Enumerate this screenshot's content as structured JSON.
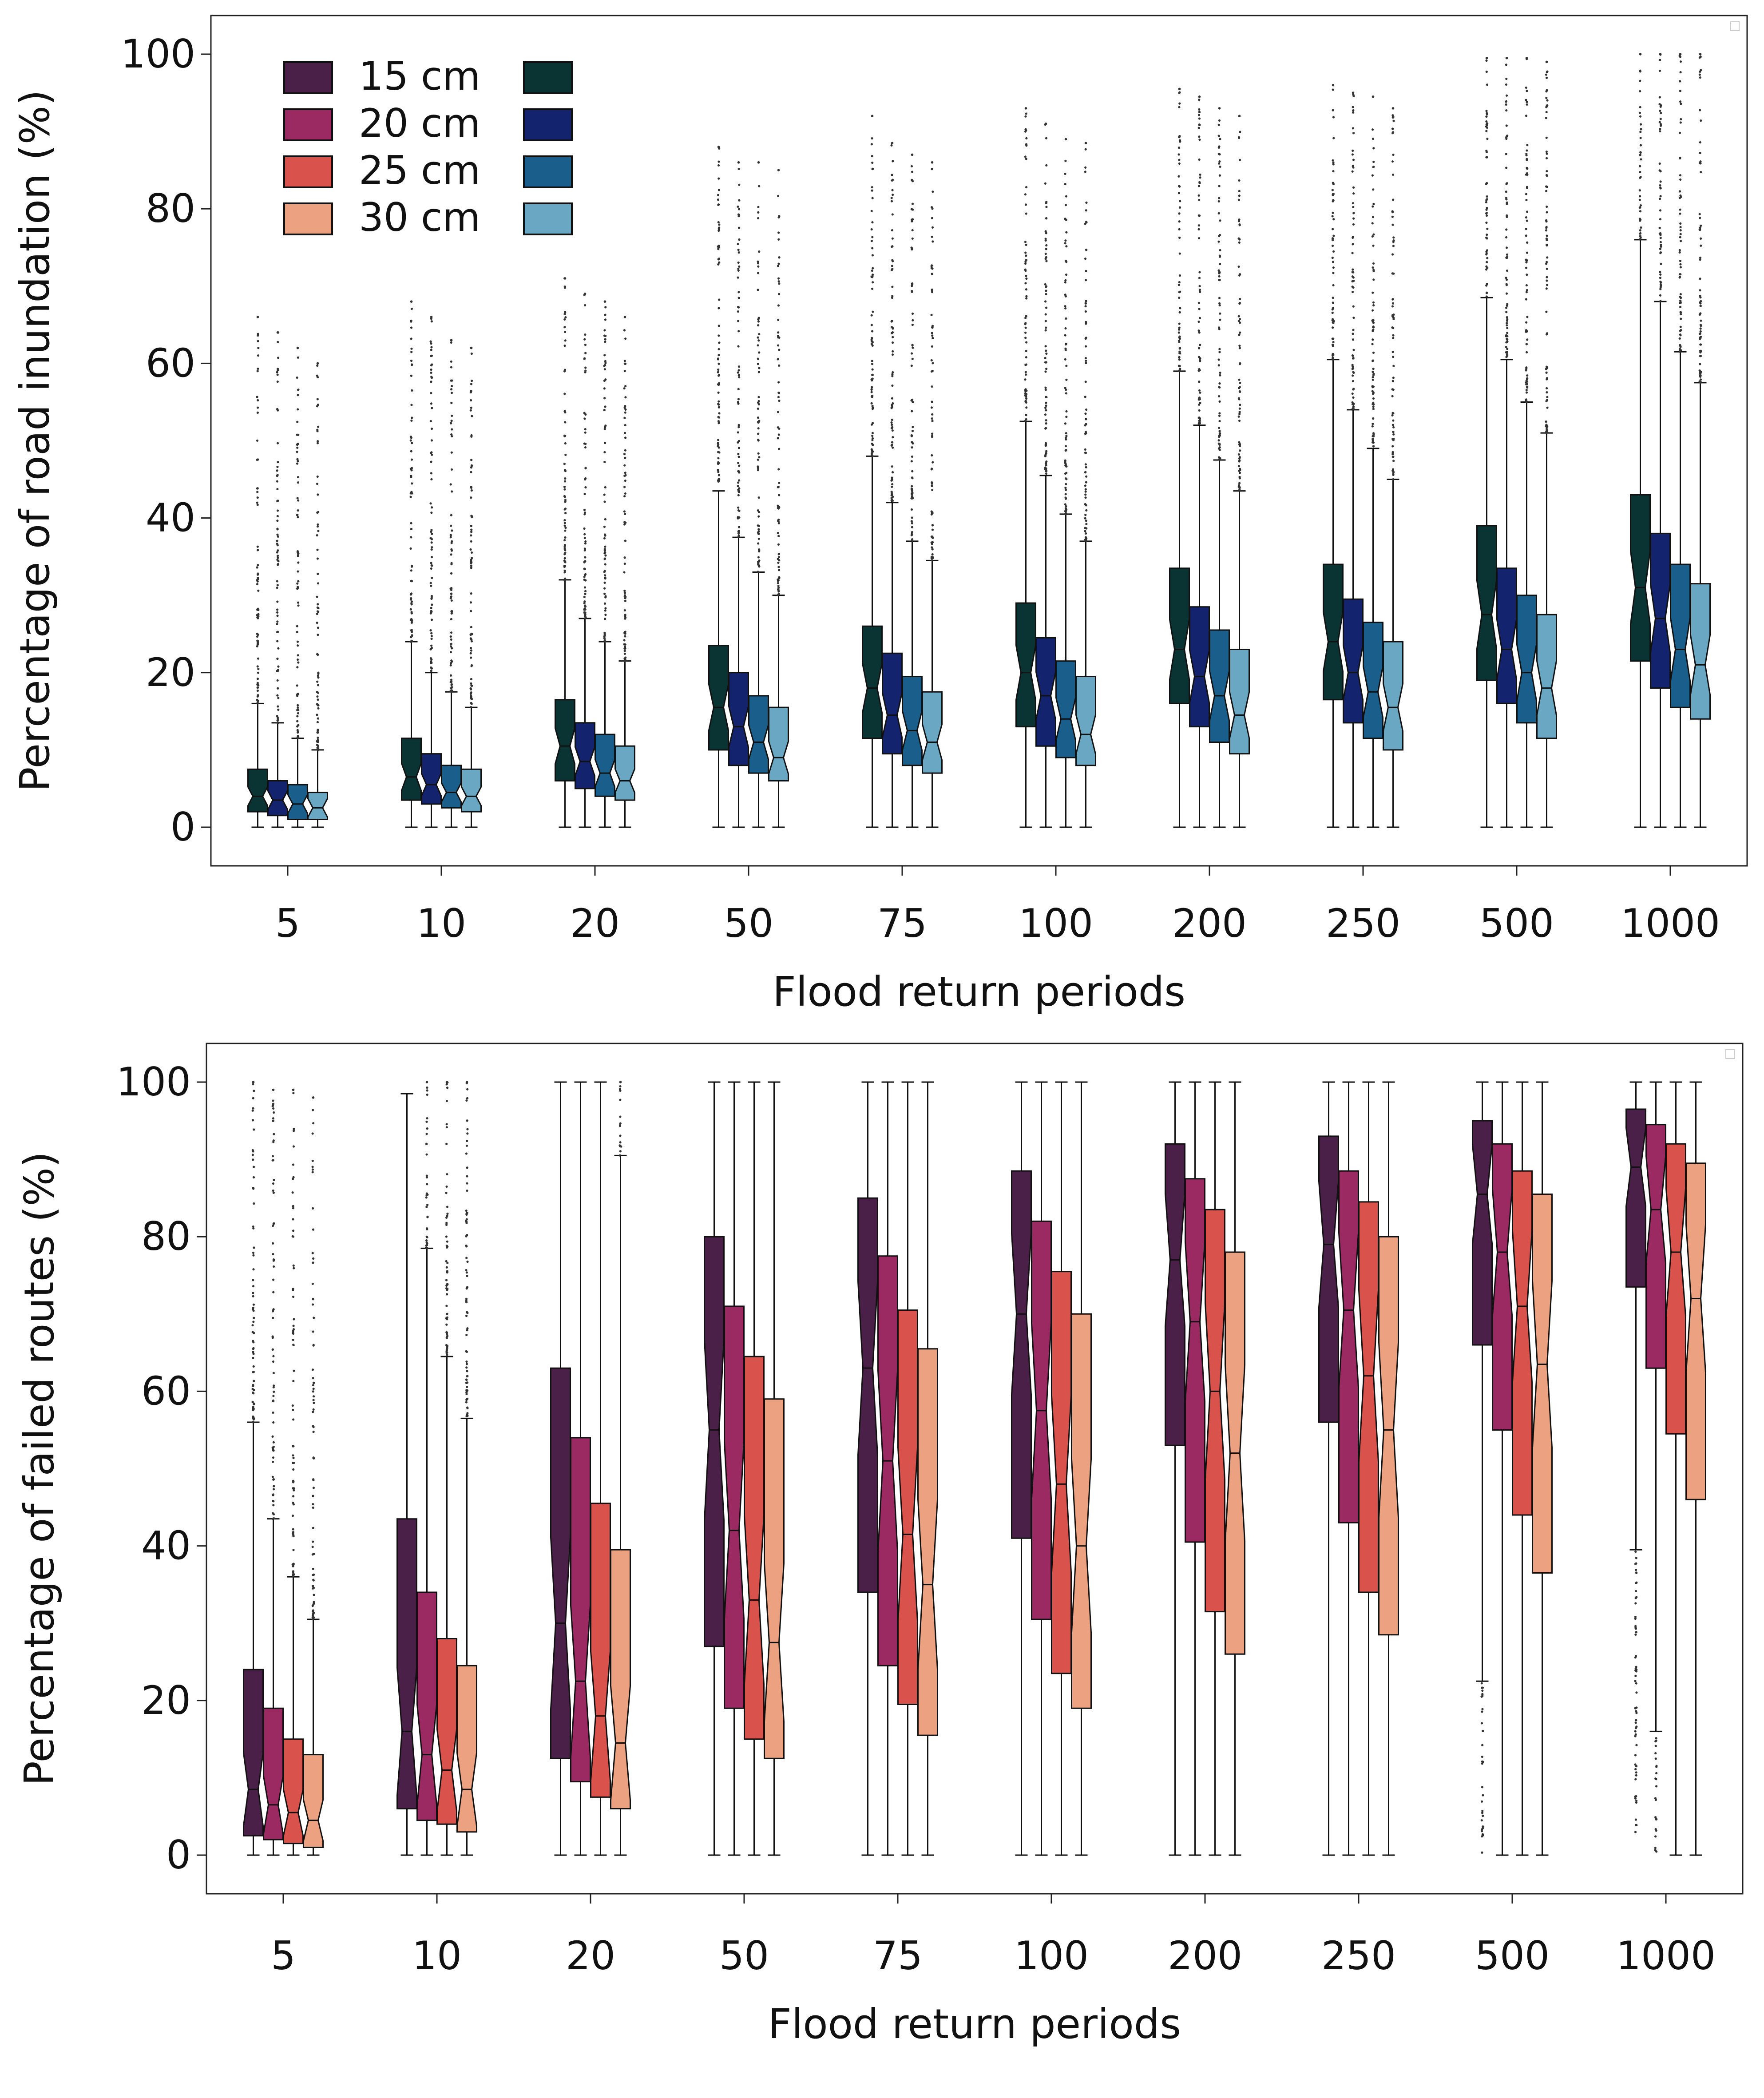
{
  "chart_data": [
    {
      "type": "boxplot",
      "xlabel": "Flood return periods",
      "ylabel": "Percentage of road inundation (%)",
      "ylim": [
        -5,
        105
      ],
      "yticks": [
        0,
        20,
        40,
        60,
        80,
        100
      ],
      "categories": [
        "5",
        "10",
        "20",
        "50",
        "75",
        "100",
        "200",
        "250",
        "500",
        "1000"
      ],
      "notched": true,
      "legend": {
        "placement": "top-left",
        "columns": 2,
        "entries": [
          "15 cm",
          "20 cm",
          "25 cm",
          "30 cm",
          "",
          "",
          "",
          ""
        ],
        "colors": [
          "#4a1f48",
          "#9b2a63",
          "#d9534c",
          "#eca181",
          "#093433",
          "#13236e",
          "#1a5f8b",
          "#6aa7c2"
        ]
      },
      "series_colors": [
        "#093433",
        "#13236e",
        "#1a5f8b",
        "#6aa7c2"
      ],
      "series": [
        {
          "boxes": [
            {
              "q1": 2,
              "med": 4,
              "q3": 7.5,
              "wlo": 0,
              "whi": 16,
              "fmax": 66
            },
            {
              "q1": 3.5,
              "med": 6.5,
              "q3": 11.5,
              "wlo": 0,
              "whi": 24,
              "fmax": 68
            },
            {
              "q1": 6,
              "med": 10.5,
              "q3": 16.5,
              "wlo": 0,
              "whi": 32,
              "fmax": 71
            },
            {
              "q1": 10,
              "med": 15.5,
              "q3": 23.5,
              "wlo": 0,
              "whi": 43.5,
              "fmax": 88
            },
            {
              "q1": 11.5,
              "med": 18,
              "q3": 26,
              "wlo": 0,
              "whi": 48,
              "fmax": 92
            },
            {
              "q1": 13,
              "med": 20,
              "q3": 29,
              "wlo": 0,
              "whi": 52.5,
              "fmax": 93
            },
            {
              "q1": 16,
              "med": 23,
              "q3": 33.5,
              "wlo": 0,
              "whi": 59,
              "fmax": 95.5
            },
            {
              "q1": 16.5,
              "med": 24,
              "q3": 34,
              "wlo": 0,
              "whi": 60.5,
              "fmax": 96
            },
            {
              "q1": 19,
              "med": 27.5,
              "q3": 39,
              "wlo": 0,
              "whi": 68.5,
              "fmax": 99.5
            },
            {
              "q1": 21.5,
              "med": 31,
              "q3": 43,
              "wlo": 0,
              "whi": 76,
              "fmax": 100
            }
          ]
        },
        {
          "boxes": [
            {
              "q1": 1.5,
              "med": 3.5,
              "q3": 6,
              "wlo": 0,
              "whi": 13.5,
              "fmax": 64
            },
            {
              "q1": 3,
              "med": 5.5,
              "q3": 9.5,
              "wlo": 0,
              "whi": 20,
              "fmax": 66
            },
            {
              "q1": 5,
              "med": 8.5,
              "q3": 13.5,
              "wlo": 0,
              "whi": 27,
              "fmax": 69
            },
            {
              "q1": 8,
              "med": 13,
              "q3": 20,
              "wlo": 0,
              "whi": 37.5,
              "fmax": 86
            },
            {
              "q1": 9.5,
              "med": 14.5,
              "q3": 22.5,
              "wlo": 0,
              "whi": 42,
              "fmax": 88.5
            },
            {
              "q1": 10.5,
              "med": 17,
              "q3": 24.5,
              "wlo": 0,
              "whi": 45.5,
              "fmax": 91
            },
            {
              "q1": 13,
              "med": 19.5,
              "q3": 28.5,
              "wlo": 0,
              "whi": 52,
              "fmax": 94.5
            },
            {
              "q1": 13.5,
              "med": 20,
              "q3": 29.5,
              "wlo": 0,
              "whi": 54,
              "fmax": 95
            },
            {
              "q1": 16,
              "med": 23,
              "q3": 33.5,
              "wlo": 0,
              "whi": 60.5,
              "fmax": 99.5
            },
            {
              "q1": 18,
              "med": 27,
              "q3": 38,
              "wlo": 0,
              "whi": 68,
              "fmax": 100
            }
          ]
        },
        {
          "boxes": [
            {
              "q1": 1,
              "med": 3,
              "q3": 5.5,
              "wlo": 0,
              "whi": 11.5,
              "fmax": 62
            },
            {
              "q1": 2.5,
              "med": 4.5,
              "q3": 8,
              "wlo": 0,
              "whi": 17.5,
              "fmax": 63
            },
            {
              "q1": 4,
              "med": 7,
              "q3": 12,
              "wlo": 0,
              "whi": 24,
              "fmax": 68
            },
            {
              "q1": 7,
              "med": 11,
              "q3": 17,
              "wlo": 0,
              "whi": 33,
              "fmax": 86
            },
            {
              "q1": 8,
              "med": 12.5,
              "q3": 19.5,
              "wlo": 0,
              "whi": 37,
              "fmax": 87
            },
            {
              "q1": 9,
              "med": 14,
              "q3": 21.5,
              "wlo": 0,
              "whi": 40.5,
              "fmax": 89
            },
            {
              "q1": 11,
              "med": 17,
              "q3": 25.5,
              "wlo": 0,
              "whi": 47.5,
              "fmax": 93
            },
            {
              "q1": 11.5,
              "med": 17.5,
              "q3": 26.5,
              "wlo": 0,
              "whi": 49,
              "fmax": 94.5
            },
            {
              "q1": 13.5,
              "med": 20,
              "q3": 30,
              "wlo": 0,
              "whi": 55,
              "fmax": 99.5
            },
            {
              "q1": 15.5,
              "med": 23,
              "q3": 34,
              "wlo": 0,
              "whi": 61.5,
              "fmax": 100
            }
          ]
        },
        {
          "boxes": [
            {
              "q1": 1,
              "med": 2.5,
              "q3": 4.5,
              "wlo": 0,
              "whi": 10,
              "fmax": 60
            },
            {
              "q1": 2,
              "med": 4,
              "q3": 7.5,
              "wlo": 0,
              "whi": 15.5,
              "fmax": 62
            },
            {
              "q1": 3.5,
              "med": 6,
              "q3": 10.5,
              "wlo": 0,
              "whi": 21.5,
              "fmax": 66
            },
            {
              "q1": 6,
              "med": 9,
              "q3": 15.5,
              "wlo": 0,
              "whi": 30,
              "fmax": 85
            },
            {
              "q1": 7,
              "med": 11,
              "q3": 17.5,
              "wlo": 0,
              "whi": 34.5,
              "fmax": 86
            },
            {
              "q1": 8,
              "med": 12,
              "q3": 19.5,
              "wlo": 0,
              "whi": 37,
              "fmax": 88.5
            },
            {
              "q1": 9.5,
              "med": 14.5,
              "q3": 23,
              "wlo": 0,
              "whi": 43.5,
              "fmax": 92
            },
            {
              "q1": 10,
              "med": 15.5,
              "q3": 24,
              "wlo": 0,
              "whi": 45,
              "fmax": 93
            },
            {
              "q1": 11.5,
              "med": 18,
              "q3": 27.5,
              "wlo": 0,
              "whi": 51,
              "fmax": 99
            },
            {
              "q1": 14,
              "med": 21,
              "q3": 31.5,
              "wlo": 0,
              "whi": 57.5,
              "fmax": 100
            }
          ]
        }
      ]
    },
    {
      "type": "boxplot",
      "xlabel": "Flood return periods",
      "ylabel": "Percentage of failed routes (%)",
      "ylim": [
        -5,
        105
      ],
      "yticks": [
        0,
        20,
        40,
        60,
        80,
        100
      ],
      "categories": [
        "5",
        "10",
        "20",
        "50",
        "75",
        "100",
        "200",
        "250",
        "500",
        "1000"
      ],
      "notched": true,
      "series_colors": [
        "#4a1f48",
        "#9b2a63",
        "#d9534c",
        "#eca181"
      ],
      "series": [
        {
          "boxes": [
            {
              "q1": 2.5,
              "med": 8.5,
              "q3": 24,
              "wlo": 0,
              "whi": 56,
              "fmax": 100
            },
            {
              "q1": 6,
              "med": 16,
              "q3": 43.5,
              "wlo": 0,
              "whi": 98.5,
              "fmax": 98.5
            },
            {
              "q1": 12.5,
              "med": 30,
              "q3": 63,
              "wlo": 0,
              "whi": 100,
              "fmax": 100
            },
            {
              "q1": 27,
              "med": 55,
              "q3": 80,
              "wlo": 0,
              "whi": 100,
              "fmax": 100
            },
            {
              "q1": 34,
              "med": 63,
              "q3": 85,
              "wlo": 0,
              "whi": 100,
              "fmax": 100
            },
            {
              "q1": 41,
              "med": 70,
              "q3": 88.5,
              "wlo": 0,
              "whi": 100,
              "fmax": 100
            },
            {
              "q1": 53,
              "med": 77,
              "q3": 92,
              "wlo": 0,
              "whi": 100,
              "fmax": 100
            },
            {
              "q1": 56,
              "med": 79,
              "q3": 93,
              "wlo": 0,
              "whi": 100,
              "fmax": 100
            },
            {
              "q1": 66,
              "med": 85.5,
              "q3": 95,
              "wlo": 22.5,
              "whi": 100,
              "fmax": 100
            },
            {
              "q1": 73.5,
              "med": 89,
              "q3": 96.5,
              "wlo": 39.5,
              "whi": 100,
              "fmax": 100
            }
          ]
        },
        {
          "boxes": [
            {
              "q1": 2,
              "med": 6.5,
              "q3": 19,
              "wlo": 0,
              "whi": 43.5,
              "fmax": 99
            },
            {
              "q1": 4.5,
              "med": 13,
              "q3": 34,
              "wlo": 0,
              "whi": 78.5,
              "fmax": 100
            },
            {
              "q1": 9.5,
              "med": 22.5,
              "q3": 54,
              "wlo": 0,
              "whi": 100,
              "fmax": 100
            },
            {
              "q1": 19,
              "med": 42,
              "q3": 71,
              "wlo": 0,
              "whi": 100,
              "fmax": 100
            },
            {
              "q1": 24.5,
              "med": 51,
              "q3": 77.5,
              "wlo": 0,
              "whi": 100,
              "fmax": 100
            },
            {
              "q1": 30.5,
              "med": 57.5,
              "q3": 82,
              "wlo": 0,
              "whi": 100,
              "fmax": 100
            },
            {
              "q1": 40.5,
              "med": 69,
              "q3": 87.5,
              "wlo": 0,
              "whi": 100,
              "fmax": 100
            },
            {
              "q1": 43,
              "med": 70.5,
              "q3": 88.5,
              "wlo": 0,
              "whi": 100,
              "fmax": 100
            },
            {
              "q1": 55,
              "med": 78,
              "q3": 92,
              "wlo": 0,
              "whi": 100,
              "fmax": 100
            },
            {
              "q1": 63,
              "med": 83.5,
              "q3": 94.5,
              "wlo": 16,
              "whi": 100,
              "fmax": 100
            }
          ]
        },
        {
          "boxes": [
            {
              "q1": 1.5,
              "med": 5.5,
              "q3": 15,
              "wlo": 0,
              "whi": 36,
              "fmax": 99
            },
            {
              "q1": 4,
              "med": 11,
              "q3": 28,
              "wlo": 0,
              "whi": 64.5,
              "fmax": 100
            },
            {
              "q1": 7.5,
              "med": 18,
              "q3": 45.5,
              "wlo": 0,
              "whi": 100,
              "fmax": 100
            },
            {
              "q1": 15,
              "med": 33,
              "q3": 64.5,
              "wlo": 0,
              "whi": 100,
              "fmax": 100
            },
            {
              "q1": 19.5,
              "med": 41.5,
              "q3": 70.5,
              "wlo": 0,
              "whi": 100,
              "fmax": 100
            },
            {
              "q1": 23.5,
              "med": 48,
              "q3": 75.5,
              "wlo": 0,
              "whi": 100,
              "fmax": 100
            },
            {
              "q1": 31.5,
              "med": 60,
              "q3": 83.5,
              "wlo": 0,
              "whi": 100,
              "fmax": 100
            },
            {
              "q1": 34,
              "med": 62,
              "q3": 84.5,
              "wlo": 0,
              "whi": 100,
              "fmax": 100
            },
            {
              "q1": 44,
              "med": 71,
              "q3": 88.5,
              "wlo": 0,
              "whi": 100,
              "fmax": 100
            },
            {
              "q1": 54.5,
              "med": 78,
              "q3": 92,
              "wlo": 0,
              "whi": 100,
              "fmax": 100
            }
          ]
        },
        {
          "boxes": [
            {
              "q1": 1,
              "med": 4.5,
              "q3": 13,
              "wlo": 0,
              "whi": 30.5,
              "fmax": 98
            },
            {
              "q1": 3,
              "med": 8.5,
              "q3": 24.5,
              "wlo": 0,
              "whi": 56.5,
              "fmax": 100
            },
            {
              "q1": 6,
              "med": 14.5,
              "q3": 39.5,
              "wlo": 0,
              "whi": 90.5,
              "fmax": 100
            },
            {
              "q1": 12.5,
              "med": 27.5,
              "q3": 59,
              "wlo": 0,
              "whi": 100,
              "fmax": 100
            },
            {
              "q1": 15.5,
              "med": 35,
              "q3": 65.5,
              "wlo": 0,
              "whi": 100,
              "fmax": 100
            },
            {
              "q1": 19,
              "med": 40,
              "q3": 70,
              "wlo": 0,
              "whi": 100,
              "fmax": 100
            },
            {
              "q1": 26,
              "med": 52,
              "q3": 78,
              "wlo": 0,
              "whi": 100,
              "fmax": 100
            },
            {
              "q1": 28.5,
              "med": 55,
              "q3": 80,
              "wlo": 0,
              "whi": 100,
              "fmax": 100
            },
            {
              "q1": 36.5,
              "med": 63.5,
              "q3": 85.5,
              "wlo": 0,
              "whi": 100,
              "fmax": 100
            },
            {
              "q1": 46,
              "med": 72,
              "q3": 89.5,
              "wlo": 0,
              "whi": 100,
              "fmax": 100
            }
          ]
        }
      ]
    }
  ]
}
